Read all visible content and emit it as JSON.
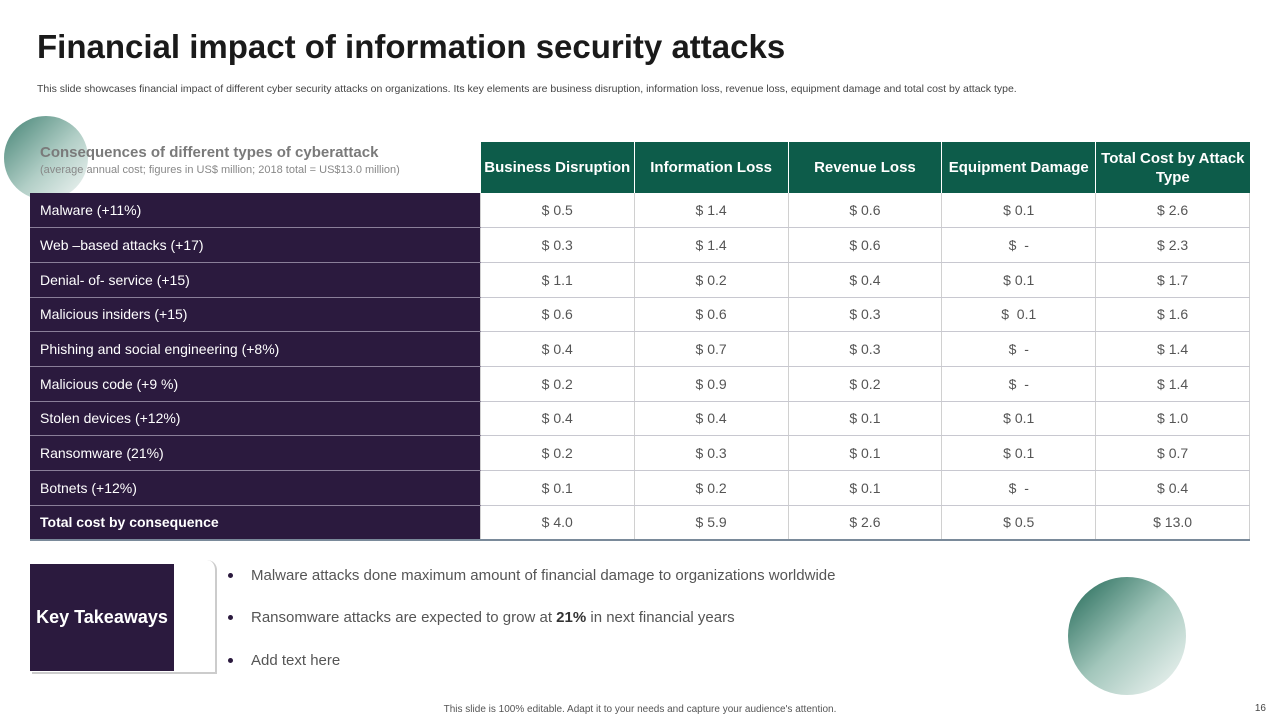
{
  "title": "Financial impact of information security attacks",
  "subtitle": "This slide showcases financial impact of different cyber security attacks on organizations. Its key elements are business disruption, information loss, revenue loss, equipment damage and total cost by attack type.",
  "table": {
    "heading": "Consequences of different types of cyberattack",
    "subheading": "(average  annual cost; figures in US$ million; 2018 total = US$13.0 million)",
    "columns": [
      "Business Disruption",
      "Information Loss",
      "Revenue Loss",
      "Equipment Damage",
      "Total Cost by Attack Type"
    ],
    "rows": [
      {
        "label": "Malware (+11%)",
        "values": [
          "$ 0.5",
          "$ 1.4",
          "$ 0.6",
          "$ 0.1",
          "$ 2.6"
        ]
      },
      {
        "label": "Web –based attacks (+17)",
        "values": [
          "$ 0.3",
          "$ 1.4",
          "$ 0.6",
          "$  -",
          "$ 2.3"
        ]
      },
      {
        "label": "Denial- of- service (+15)",
        "values": [
          "$ 1.1",
          "$ 0.2",
          "$ 0.4",
          "$ 0.1",
          "$ 1.7"
        ]
      },
      {
        "label": "Malicious insiders (+15)",
        "values": [
          "$ 0.6",
          "$ 0.6",
          "$ 0.3",
          "$  0.1",
          "$ 1.6"
        ]
      },
      {
        "label": "Phishing and social  engineering (+8%)",
        "values": [
          "$ 0.4",
          "$ 0.7",
          "$ 0.3",
          "$  -",
          "$ 1.4"
        ]
      },
      {
        "label": "Malicious code (+9 %)",
        "values": [
          "$ 0.2",
          "$ 0.9",
          "$ 0.2",
          "$  -",
          "$ 1.4"
        ]
      },
      {
        "label": "Stolen devices (+12%)",
        "values": [
          "$ 0.4",
          "$ 0.4",
          "$ 0.1",
          "$ 0.1",
          "$ 1.0"
        ]
      },
      {
        "label": "Ransomware (21%)",
        "values": [
          "$ 0.2",
          "$ 0.3",
          "$ 0.1",
          "$ 0.1",
          "$ 0.7"
        ]
      },
      {
        "label": "Botnets (+12%)",
        "values": [
          "$ 0.1",
          "$ 0.2",
          "$ 0.1",
          "$  -",
          "$ 0.4"
        ]
      },
      {
        "label": "Total cost by consequence",
        "values": [
          "$ 4.0",
          "$ 5.9",
          "$ 2.6",
          "$ 0.5",
          "$ 13.0"
        ]
      }
    ]
  },
  "key_takeaways": {
    "label": "Key Takeaways",
    "b1": "Malware attacks done maximum amount of financial damage to organizations worldwide",
    "b2_pre": "Ransomware attacks are expected to grow at ",
    "b2_bold": "21%",
    "b2_post": " in next financial years",
    "b3": "Add text here"
  },
  "footer": "This slide is 100% editable. Adapt it to your needs and capture your audience's attention.",
  "page_number": "16"
}
